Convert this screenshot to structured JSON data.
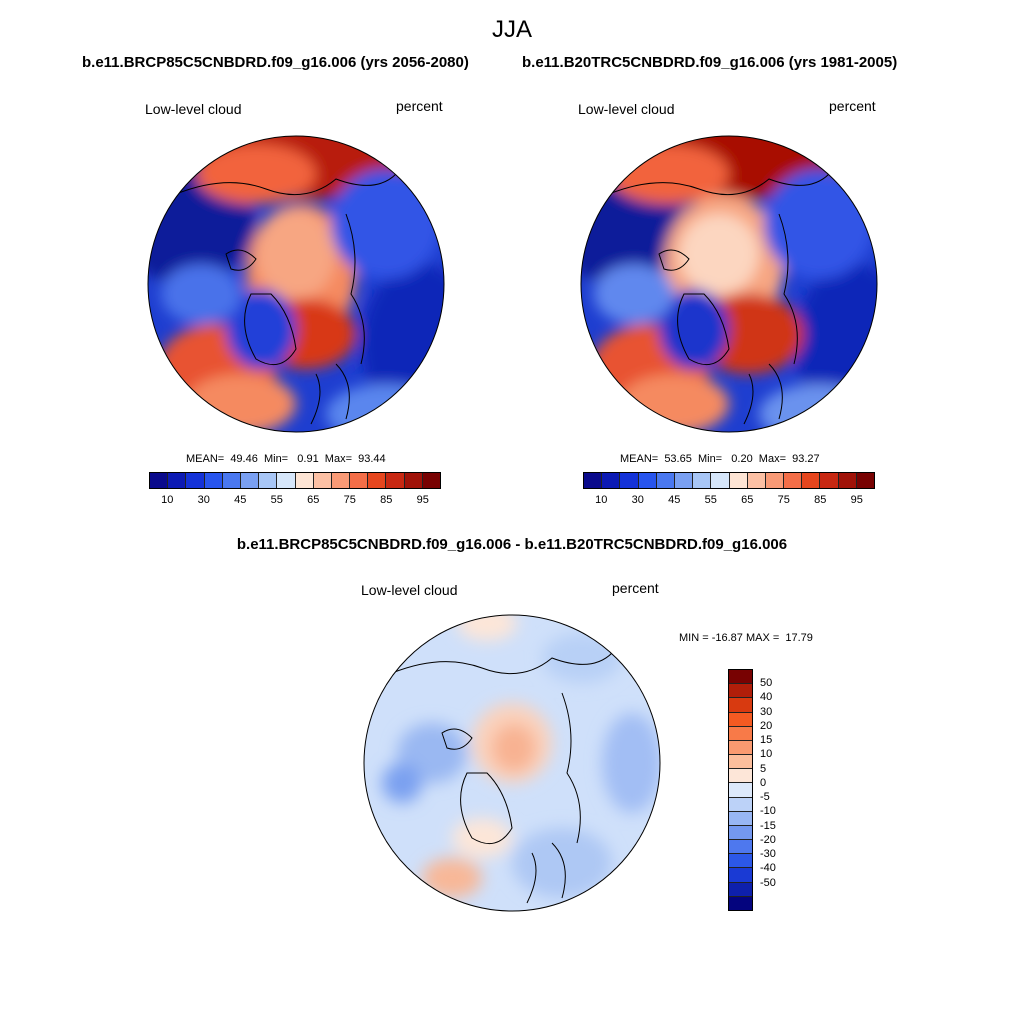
{
  "season": "JJA",
  "panels": {
    "left": {
      "title": "b.e11.BRCP85C5CNBDRD.f09_g16.006 (yrs 2056-2080)",
      "variable": "Low-level cloud",
      "units": "percent",
      "stats": "MEAN=  49.46  Min=   0.91  Max=  93.44"
    },
    "right": {
      "title": "b.e11.B20TRC5CNBDRD.f09_g16.006 (yrs 1981-2005)",
      "variable": "Low-level cloud",
      "units": "percent",
      "stats": "MEAN=  53.65  Min=   0.20  Max=  93.27"
    },
    "diff": {
      "title": "b.e11.BRCP85C5CNBDRD.f09_g16.006 - b.e11.B20TRC5CNBDRD.f09_g16.006",
      "variable": "Low-level cloud",
      "units": "percent",
      "stats": "MIN = -16.87 MAX =  17.79"
    }
  },
  "abs_colorbar": {
    "colors": [
      "#0a0a8c",
      "#0c1ab4",
      "#1432d8",
      "#2855ee",
      "#4a78f0",
      "#7aa0f2",
      "#a8c6f6",
      "#d6e6fa",
      "#fde4d4",
      "#fcc0a4",
      "#f99a76",
      "#f46e48",
      "#e6461e",
      "#c82812",
      "#a01208",
      "#780202"
    ],
    "tick_labels": [
      "10",
      "30",
      "45",
      "55",
      "65",
      "75",
      "85",
      "95"
    ]
  },
  "diff_colorbar": {
    "colors": [
      "#780202",
      "#b01e0a",
      "#d83a10",
      "#f45a22",
      "#f87a48",
      "#fa9a70",
      "#fcbe9c",
      "#fde6d8",
      "#dde9fb",
      "#bcd2f8",
      "#98b6f4",
      "#7498f0",
      "#4e78ee",
      "#2c58e8",
      "#1a3ad4",
      "#0e20ac",
      "#04047e"
    ],
    "tick_labels": [
      "50",
      "40",
      "30",
      "20",
      "15",
      "10",
      "5",
      "0",
      "-5",
      "-10",
      "-15",
      "-20",
      "-30",
      "-40",
      "-50"
    ]
  }
}
